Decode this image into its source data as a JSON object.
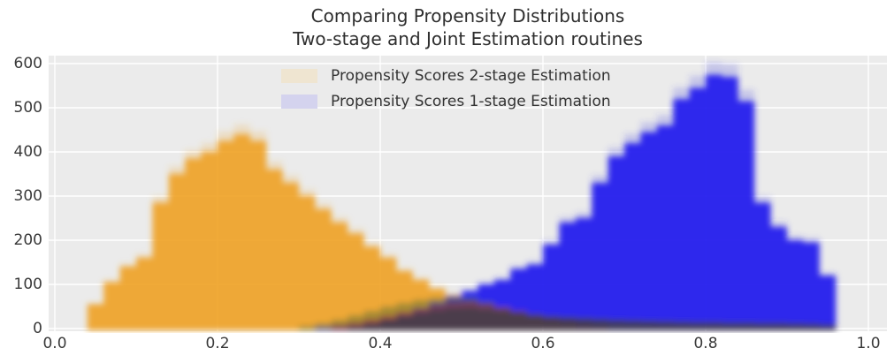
{
  "title": {
    "line1": "Comparing Propensity Distributions",
    "line2": "Two-stage and Joint Estimation routines"
  },
  "legend": [
    {
      "label": "Propensity Scores 2-stage Estimation",
      "swatch_color": "#efe5d1",
      "series_color": "#f09f1d"
    },
    {
      "label": "Propensity Scores 1-stage Estimation",
      "swatch_color": "#d4d3ee",
      "series_color": "#2e2bef"
    }
  ],
  "axes": {
    "x_tick_labels": [
      "0.0",
      "0.2",
      "0.4",
      "0.6",
      "0.8",
      "1.0"
    ],
    "y_tick_labels": [
      "0",
      "100",
      "200",
      "300",
      "400",
      "500",
      "600"
    ],
    "x_tick_values": [
      0.0,
      0.2,
      0.4,
      0.6,
      0.8,
      1.0
    ],
    "y_tick_values": [
      0,
      100,
      200,
      300,
      400,
      500,
      600
    ]
  },
  "chart_data": {
    "type": "bar",
    "subtype": "overlaid-histograms",
    "title": "Comparing Propensity Distributions\nTwo-stage and Joint Estimation routines",
    "xlabel": "",
    "ylabel": "",
    "xlim": [
      -0.008,
      1.023
    ],
    "ylim": [
      0,
      600
    ],
    "grid": true,
    "grid_color": "#ffffff",
    "plot_background": "#ebebeb",
    "legend_position": "upper center",
    "bin_start": 0.04,
    "bin_width": 0.02,
    "series": [
      {
        "name": "Propensity Scores 2-stage Estimation",
        "color": "#f09f1d",
        "values": [
          55,
          105,
          140,
          160,
          285,
          350,
          385,
          400,
          425,
          440,
          425,
          360,
          330,
          300,
          270,
          240,
          215,
          185,
          160,
          130,
          110,
          90,
          75,
          60,
          45,
          35,
          28,
          22,
          18,
          14,
          11,
          9,
          7,
          6,
          5,
          4,
          4,
          3,
          3,
          2,
          2,
          2,
          2,
          1,
          1,
          1
        ]
      },
      {
        "name": "Propensity Scores 1-stage Estimation",
        "color": "#2e2bef",
        "values": [
          0,
          0,
          0,
          0,
          0,
          0,
          0,
          0,
          0,
          0,
          0,
          0,
          0,
          0,
          2,
          4,
          8,
          14,
          22,
          32,
          45,
          58,
          72,
          85,
          100,
          110,
          135,
          145,
          190,
          240,
          250,
          330,
          390,
          420,
          445,
          460,
          520,
          545,
          575,
          570,
          515,
          285,
          230,
          200,
          195,
          120
        ]
      }
    ],
    "overlap_layers": [
      {
        "name": "overlap-tint-green",
        "color": "#5d7030",
        "alpha": 0.5,
        "values": [
          0,
          0,
          0,
          0,
          0,
          0,
          0,
          0,
          0,
          0,
          0,
          0,
          0,
          6,
          12,
          20,
          30,
          40,
          50,
          58,
          65,
          70,
          72,
          70,
          60,
          48,
          36,
          25,
          15,
          8,
          0,
          0,
          0,
          0,
          0,
          0,
          0,
          0,
          0,
          0,
          0,
          0,
          0,
          0,
          0,
          0
        ]
      },
      {
        "name": "overlap-tint-red",
        "color": "#9c3338",
        "alpha": 0.55,
        "values": [
          0,
          0,
          0,
          0,
          0,
          0,
          0,
          0,
          0,
          0,
          0,
          0,
          0,
          0,
          0,
          8,
          14,
          22,
          30,
          38,
          46,
          53,
          58,
          60,
          55,
          48,
          40,
          32,
          24,
          17,
          10,
          5,
          0,
          0,
          0,
          0,
          0,
          0,
          0,
          0,
          0,
          0,
          0,
          0,
          0,
          0
        ]
      },
      {
        "name": "overlap-dark-band",
        "color": "#443e48",
        "alpha": 0.85,
        "values": [
          0,
          0,
          0,
          0,
          0,
          0,
          0,
          0,
          0,
          0,
          0,
          0,
          0,
          0,
          0,
          0,
          5,
          12,
          20,
          28,
          35,
          42,
          47,
          48,
          44,
          40,
          36,
          32,
          28,
          26,
          24,
          22,
          20,
          19,
          18,
          17,
          16,
          15,
          15,
          14,
          14,
          13,
          13,
          12,
          11,
          9
        ]
      }
    ]
  }
}
